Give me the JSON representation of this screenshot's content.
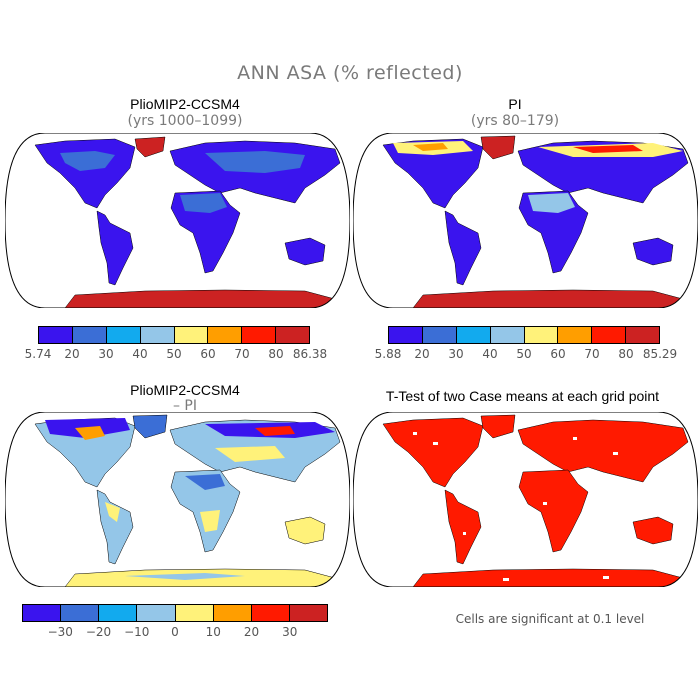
{
  "figure": {
    "title": "ANN ASA (% reflected)"
  },
  "panels": [
    {
      "title": "PlioMIP2-CCSM4",
      "subtitle": "(yrs 1000–1099)",
      "colorbar_labels": [
        "5.74",
        "20",
        "30",
        "40",
        "50",
        "60",
        "70",
        "80",
        "86.38"
      ],
      "colorbar_colors": [
        "#3a14ee",
        "#3b6ed6",
        "#12aaee",
        "#94c6e8",
        "#fff27a",
        "#ff9e00",
        "#ff1a00",
        "#cc2222"
      ]
    },
    {
      "title": "PI",
      "subtitle": "(yrs 80–179)",
      "colorbar_labels": [
        "5.88",
        "20",
        "30",
        "40",
        "50",
        "60",
        "70",
        "80",
        "85.29"
      ],
      "colorbar_colors": [
        "#3a14ee",
        "#3b6ed6",
        "#12aaee",
        "#94c6e8",
        "#fff27a",
        "#ff9e00",
        "#ff1a00",
        "#cc2222"
      ]
    },
    {
      "title": "PlioMIP2-CCSM4",
      "subtitle": "– PI",
      "colorbar_labels": [
        "−30",
        "−20",
        "−10",
        "0",
        "10",
        "20",
        "30"
      ],
      "colorbar_colors": [
        "#3a14ee",
        "#3b6ed6",
        "#12aaee",
        "#94c6e8",
        "#fff27a",
        "#ff9e00",
        "#ff1a00",
        "#cc2222"
      ]
    },
    {
      "title": "T-Test of two Case means at each grid point",
      "note": "Cells are significant at 0.1 level"
    }
  ],
  "colors": {
    "ocean": "#ffffff",
    "land_low": "#3a14ee",
    "land_mid": "#3b6ed6",
    "diff_land": "#94c6e8",
    "diff_pos": "#fff27a",
    "significant": "#ff1a00"
  }
}
